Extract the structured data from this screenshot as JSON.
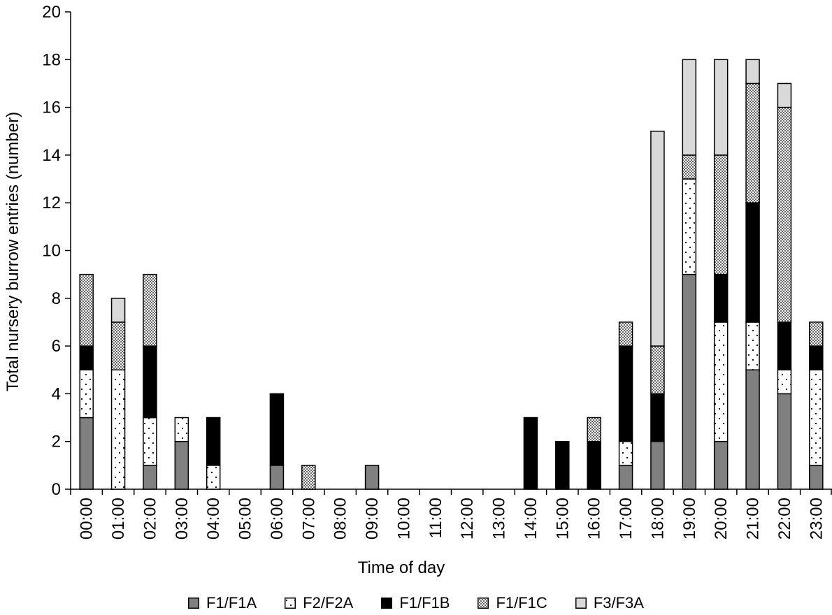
{
  "chart_data": {
    "type": "bar",
    "stacked": true,
    "title": "",
    "xlabel": "Time of day",
    "ylabel": "Total nursery burrow entries (number)",
    "ylim": [
      0,
      20
    ],
    "yticks": [
      "0",
      "2",
      "4",
      "6",
      "8",
      "10",
      "12",
      "14",
      "16",
      "18",
      "20"
    ],
    "grid": false,
    "legend_position": "bottom",
    "categories": [
      "00:00",
      "01:00",
      "02:00",
      "03:00",
      "04:00",
      "05:00",
      "06:00",
      "07:00",
      "08:00",
      "09:00",
      "10:00",
      "11:00",
      "12:00",
      "13:00",
      "14:00",
      "15:00",
      "16:00",
      "17:00",
      "18:00",
      "19:00",
      "20:00",
      "21:00",
      "22:00",
      "23:00"
    ],
    "series": [
      {
        "name": "F1/F1A",
        "color": "#808080",
        "pattern": "solid",
        "values": [
          3,
          0,
          1,
          2,
          0,
          0,
          1,
          0,
          0,
          1,
          0,
          0,
          0,
          0,
          0,
          0,
          0,
          1,
          2,
          9,
          2,
          5,
          4,
          1
        ]
      },
      {
        "name": "F2/F2A",
        "color": "#ffffff",
        "pattern": "sparse-dots",
        "values": [
          2,
          5,
          2,
          1,
          1,
          0,
          0,
          0,
          0,
          0,
          0,
          0,
          0,
          0,
          0,
          0,
          0,
          1,
          0,
          4,
          5,
          2,
          1,
          4
        ]
      },
      {
        "name": "F1/F1B",
        "color": "#000000",
        "pattern": "solid",
        "values": [
          1,
          0,
          3,
          0,
          2,
          0,
          3,
          0,
          0,
          0,
          0,
          0,
          0,
          0,
          3,
          2,
          2,
          4,
          2,
          0,
          2,
          5,
          2,
          1
        ]
      },
      {
        "name": "F1/F1C",
        "color": "#ffffff",
        "pattern": "dense-dots",
        "values": [
          3,
          2,
          3,
          0,
          0,
          0,
          0,
          1,
          0,
          0,
          0,
          0,
          0,
          0,
          0,
          0,
          1,
          1,
          2,
          1,
          5,
          5,
          9,
          1
        ]
      },
      {
        "name": "F3/F3A",
        "color": "#d9d9d9",
        "pattern": "solid",
        "values": [
          0,
          1,
          0,
          0,
          0,
          0,
          0,
          0,
          0,
          0,
          0,
          0,
          0,
          0,
          0,
          0,
          0,
          0,
          9,
          4,
          4,
          1,
          1,
          0
        ]
      }
    ]
  }
}
